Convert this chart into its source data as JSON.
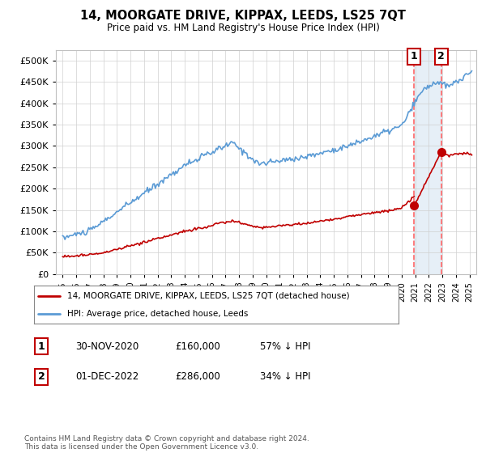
{
  "title": "14, MOORGATE DRIVE, KIPPAX, LEEDS, LS25 7QT",
  "subtitle": "Price paid vs. HM Land Registry's House Price Index (HPI)",
  "legend_line1": "14, MOORGATE DRIVE, KIPPAX, LEEDS, LS25 7QT (detached house)",
  "legend_line2": "HPI: Average price, detached house, Leeds",
  "footnote": "Contains HM Land Registry data © Crown copyright and database right 2024.\nThis data is licensed under the Open Government Licence v3.0.",
  "annotation1_label": "1",
  "annotation1_date": "30-NOV-2020",
  "annotation1_price": "£160,000",
  "annotation1_hpi": "57% ↓ HPI",
  "annotation2_label": "2",
  "annotation2_date": "01-DEC-2022",
  "annotation2_price": "£286,000",
  "annotation2_hpi": "34% ↓ HPI",
  "sale1_x": 2020.917,
  "sale1_y": 160000,
  "sale2_x": 2022.917,
  "sale2_y": 286000,
  "hpi_color": "#5B9BD5",
  "price_color": "#C00000",
  "vline_color": "#FF6666",
  "background_highlight": "#DCE9F5",
  "ylim": [
    0,
    525000
  ],
  "yticks": [
    0,
    50000,
    100000,
    150000,
    200000,
    250000,
    300000,
    350000,
    400000,
    450000,
    500000
  ],
  "xlim": [
    1994.5,
    2025.5
  ],
  "xticks": [
    1995,
    1996,
    1997,
    1998,
    1999,
    2000,
    2001,
    2002,
    2003,
    2004,
    2005,
    2006,
    2007,
    2008,
    2009,
    2010,
    2011,
    2012,
    2013,
    2014,
    2015,
    2016,
    2017,
    2018,
    2019,
    2020,
    2021,
    2022,
    2023,
    2024,
    2025
  ]
}
